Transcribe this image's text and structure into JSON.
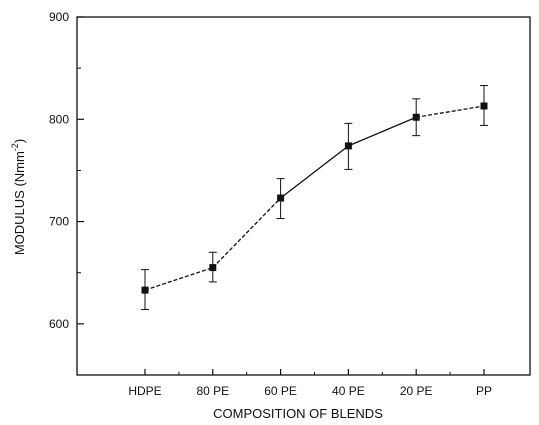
{
  "chart_data": {
    "type": "line",
    "title": "",
    "xlabel": "COMPOSITION OF BLENDS",
    "ylabel": "MODULUS (Nmm",
    "ylabel_superscript": "-2",
    "ylabel_close": ")",
    "categories": [
      "HDPE",
      "80 PE",
      "60 PE",
      "40 PE",
      "20 PE",
      "PP"
    ],
    "series": [
      {
        "values": [
          633,
          655,
          723,
          774,
          802,
          813
        ],
        "error_low": [
          614,
          641,
          703,
          751,
          784,
          794
        ],
        "error_high": [
          653,
          670,
          742,
          796,
          820,
          833
        ]
      }
    ],
    "ylim": [
      550,
      900
    ],
    "yticks": [
      600,
      700,
      800,
      900
    ],
    "ytick_labels": [
      "600",
      "700",
      "800",
      "900"
    ],
    "grid": false,
    "legend": "none",
    "marker": "square",
    "line_color": "#111111"
  }
}
